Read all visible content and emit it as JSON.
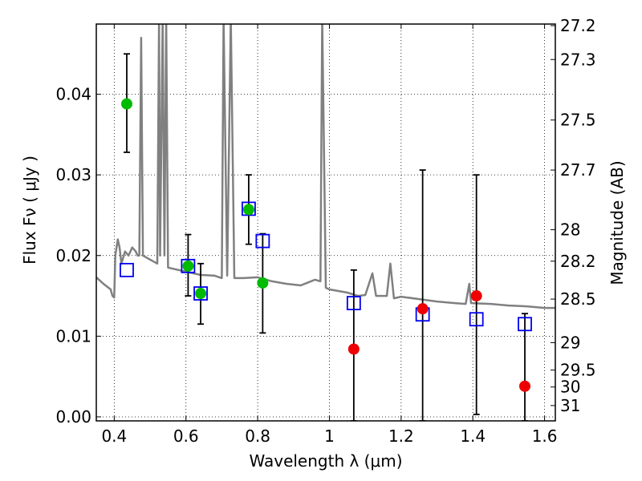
{
  "chart_data": {
    "type": "scatter",
    "xlabel": "Wavelength  λ (μm)",
    "ylabel": "Flux  Fν ( μJy )",
    "ylabel_right": "Magnitude (AB)",
    "xlim": [
      0.35,
      1.63
    ],
    "ylim": [
      -0.0005,
      0.0487
    ],
    "grid": true,
    "x_ticks": [
      0.4,
      0.6,
      0.8,
      1.0,
      1.2,
      1.4,
      1.6
    ],
    "x_tick_labels": [
      "0.4",
      "0.6",
      "0.8",
      "1",
      "1.2",
      "1.4",
      "1.6"
    ],
    "y_ticks": [
      0.0,
      0.01,
      0.02,
      0.03,
      0.04
    ],
    "y_tick_labels": [
      "0.00",
      "0.01",
      "0.02",
      "0.03",
      "0.04"
    ],
    "right_ticks": [
      {
        "label": "27.2",
        "flux": 0.0485
      },
      {
        "label": "27.3",
        "flux": 0.0443
      },
      {
        "label": "27.5",
        "flux": 0.0368
      },
      {
        "label": "27.7",
        "flux": 0.0306
      },
      {
        "label": "28",
        "flux": 0.0232
      },
      {
        "label": "28.2",
        "flux": 0.0193
      },
      {
        "label": "28.5",
        "flux": 0.0146
      },
      {
        "label": "29",
        "flux": 0.0092
      },
      {
        "label": "29.5",
        "flux": 0.0058
      },
      {
        "label": "30",
        "flux": 0.0037
      },
      {
        "label": "31",
        "flux": 0.0014
      }
    ],
    "series": [
      {
        "marker": "filled-circle",
        "color": "#00bb00",
        "points": [
          {
            "x": 0.435,
            "y": 0.0388,
            "err_low": 0.0328,
            "err_high": 0.045
          },
          {
            "x": 0.606,
            "y": 0.0187,
            "err_low": 0.015,
            "err_high": 0.0226
          },
          {
            "x": 0.641,
            "y": 0.0153,
            "err_low": 0.0115,
            "err_high": 0.019
          },
          {
            "x": 0.775,
            "y": 0.0257,
            "err_low": 0.0214,
            "err_high": 0.03
          },
          {
            "x": 0.814,
            "y": 0.0166,
            "err_low": 0.0104,
            "err_high": 0.0227
          }
        ]
      },
      {
        "marker": "filled-circle",
        "color": "#ee0000",
        "points": [
          {
            "x": 1.068,
            "y": 0.0084,
            "err_low": -0.0005,
            "err_high": 0.0182
          },
          {
            "x": 1.26,
            "y": 0.0134,
            "err_low": -0.0005,
            "err_high": 0.0306
          },
          {
            "x": 1.41,
            "y": 0.015,
            "err_low": 0.0003,
            "err_high": 0.03
          },
          {
            "x": 1.545,
            "y": 0.0038,
            "err_low": -0.0005,
            "err_high": 0.0128
          }
        ]
      },
      {
        "marker": "open-square",
        "color": "#0000ee",
        "points": [
          {
            "x": 0.435,
            "y": 0.0182
          },
          {
            "x": 0.606,
            "y": 0.0187
          },
          {
            "x": 0.641,
            "y": 0.0153
          },
          {
            "x": 0.775,
            "y": 0.0258
          },
          {
            "x": 0.814,
            "y": 0.0218
          },
          {
            "x": 1.068,
            "y": 0.0141
          },
          {
            "x": 1.26,
            "y": 0.0127
          },
          {
            "x": 1.41,
            "y": 0.0121
          },
          {
            "x": 1.545,
            "y": 0.0115
          }
        ]
      },
      {
        "type": "line",
        "color": "#808080",
        "points": [
          [
            0.35,
            0.0173
          ],
          [
            0.37,
            0.0165
          ],
          [
            0.39,
            0.0158
          ],
          [
            0.395,
            0.015
          ],
          [
            0.4,
            0.0148
          ],
          [
            0.403,
            0.02
          ],
          [
            0.41,
            0.022
          ],
          [
            0.415,
            0.021
          ],
          [
            0.42,
            0.019
          ],
          [
            0.43,
            0.0205
          ],
          [
            0.44,
            0.02
          ],
          [
            0.45,
            0.021
          ],
          [
            0.46,
            0.0205
          ],
          [
            0.465,
            0.02
          ],
          [
            0.47,
            0.02
          ],
          [
            0.475,
            0.047
          ],
          [
            0.48,
            0.02
          ],
          [
            0.5,
            0.0195
          ],
          [
            0.52,
            0.019
          ],
          [
            0.525,
            0.0495
          ],
          [
            0.528,
            0.02
          ],
          [
            0.535,
            0.0495
          ],
          [
            0.54,
            0.02
          ],
          [
            0.545,
            0.0495
          ],
          [
            0.55,
            0.0185
          ],
          [
            0.6,
            0.018
          ],
          [
            0.62,
            0.0178
          ],
          [
            0.64,
            0.0176
          ],
          [
            0.68,
            0.0175
          ],
          [
            0.7,
            0.0172
          ],
          [
            0.705,
            0.0495
          ],
          [
            0.715,
            0.0175
          ],
          [
            0.725,
            0.0495
          ],
          [
            0.735,
            0.0172
          ],
          [
            0.76,
            0.0172
          ],
          [
            0.8,
            0.0173
          ],
          [
            0.84,
            0.0168
          ],
          [
            0.88,
            0.0165
          ],
          [
            0.92,
            0.0163
          ],
          [
            0.96,
            0.017
          ],
          [
            0.975,
            0.0168
          ],
          [
            0.98,
            0.0495
          ],
          [
            0.99,
            0.016
          ],
          [
            1.0,
            0.0158
          ],
          [
            1.05,
            0.0154
          ],
          [
            1.08,
            0.015
          ],
          [
            1.1,
            0.0151
          ],
          [
            1.12,
            0.0178
          ],
          [
            1.13,
            0.015
          ],
          [
            1.16,
            0.015
          ],
          [
            1.17,
            0.019
          ],
          [
            1.18,
            0.0147
          ],
          [
            1.2,
            0.0149
          ],
          [
            1.25,
            0.0146
          ],
          [
            1.3,
            0.0143
          ],
          [
            1.35,
            0.0141
          ],
          [
            1.38,
            0.014
          ],
          [
            1.39,
            0.0165
          ],
          [
            1.395,
            0.0141
          ],
          [
            1.45,
            0.014
          ],
          [
            1.5,
            0.0138
          ],
          [
            1.55,
            0.0137
          ],
          [
            1.6,
            0.0135
          ],
          [
            1.63,
            0.0135
          ]
        ]
      }
    ]
  }
}
